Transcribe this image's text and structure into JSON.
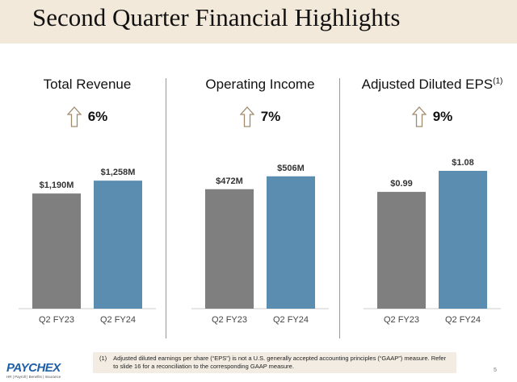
{
  "title": "Second Quarter Financial Highlights",
  "colors": {
    "header_bg": "#f3e9db",
    "prior_year": "#7f7f7f",
    "current_year": "#5b8db0",
    "arrow": "#a08a6c"
  },
  "chart_data": [
    {
      "type": "bar",
      "title": "Total Revenue",
      "title_note": "",
      "change": "6%",
      "change_icon": "up-arrow-icon",
      "categories": [
        "Q2 FY23",
        "Q2 FY24"
      ],
      "values": [
        1190,
        1258
      ],
      "labels": [
        "$1,190M",
        "$1,258M"
      ],
      "ylim": [
        582,
        1433
      ],
      "grid": false
    },
    {
      "type": "bar",
      "title": "Operating Income",
      "title_note": "",
      "change": "7%",
      "change_icon": "up-arrow-icon",
      "categories": [
        "Q2 FY23",
        "Q2 FY24"
      ],
      "values": [
        472,
        506
      ],
      "labels": [
        "$472M",
        "$506M"
      ],
      "ylim": [
        157,
        582
      ],
      "grid": false
    },
    {
      "type": "bar",
      "title": "Adjusted Diluted EPS",
      "title_note": "(1)",
      "change": "9%",
      "change_icon": "up-arrow-icon",
      "categories": [
        "Q2 FY23",
        "Q2 FY24"
      ],
      "values": [
        0.99,
        1.08
      ],
      "labels": [
        "$0.99",
        "$1.08"
      ],
      "ylim": [
        0.49,
        1.18
      ],
      "grid": false
    }
  ],
  "footnote": {
    "marker": "(1)",
    "text": "Adjusted diluted earnings per share (“EPS”) is not a U.S. generally accepted accounting principles (“GAAP”) measure.  Refer to slide 16 for a reconciliation to the corresponding GAAP measure."
  },
  "logo": {
    "name": "PAYCHEX",
    "tagline": "HR | Payroll | Benefits | Insurance"
  },
  "page_number": "5"
}
